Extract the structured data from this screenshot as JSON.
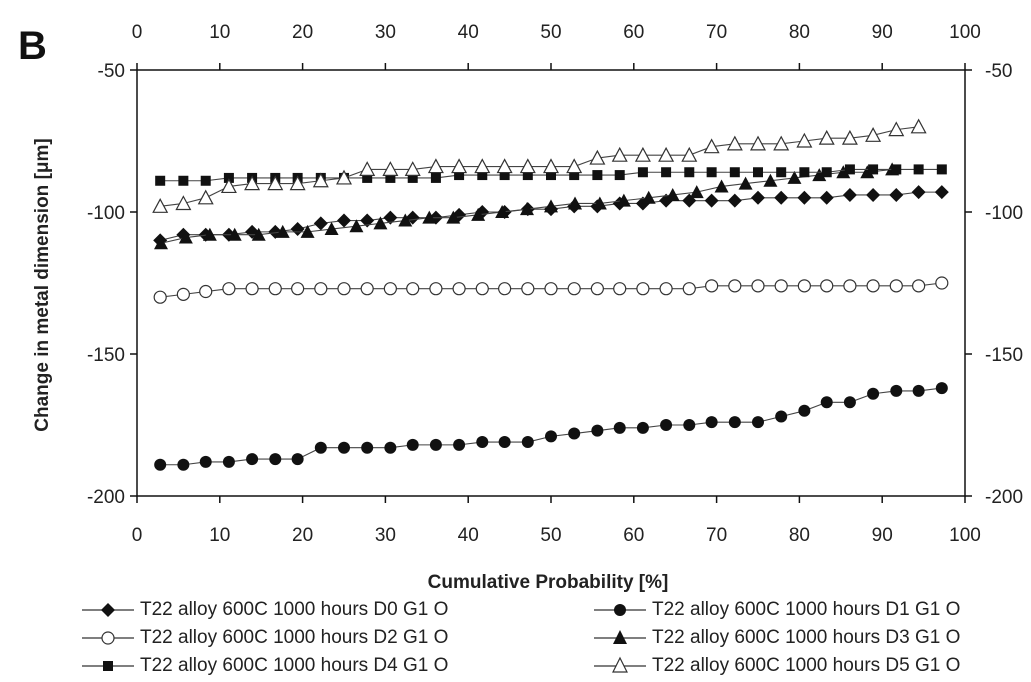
{
  "panel_label": "B",
  "chart_data": {
    "type": "scatter",
    "title": "",
    "xlabel": "Cumulative Probability [%]",
    "ylabel": "Change in metal dimension [μm]",
    "xlim": [
      0,
      100
    ],
    "ylim": [
      -200,
      -50
    ],
    "x_ticks": [
      0,
      10,
      20,
      30,
      40,
      50,
      60,
      70,
      80,
      90,
      100
    ],
    "y_ticks": [
      -50,
      -100,
      -150,
      -200
    ],
    "grid": false,
    "legend_position": "bottom",
    "series": [
      {
        "name": "T22 alloy 600C 1000 hours D0 G1 O",
        "marker": "diamond-filled",
        "x": [
          2.8,
          5.6,
          8.3,
          11.1,
          13.9,
          16.7,
          19.4,
          22.2,
          25.0,
          27.8,
          30.6,
          33.3,
          36.1,
          38.9,
          41.7,
          44.4,
          47.2,
          50.0,
          52.8,
          55.6,
          58.3,
          61.1,
          63.9,
          66.7,
          69.4,
          72.2,
          75.0,
          77.8,
          80.6,
          83.3,
          86.1,
          88.9,
          91.7,
          94.4,
          97.2
        ],
        "y": [
          -110,
          -108,
          -108,
          -108,
          -107,
          -107,
          -106,
          -104,
          -103,
          -103,
          -102,
          -102,
          -102,
          -101,
          -100,
          -100,
          -99,
          -99,
          -98,
          -98,
          -97,
          -97,
          -96,
          -96,
          -96,
          -96,
          -95,
          -95,
          -95,
          -95,
          -94,
          -94,
          -94,
          -93,
          -93
        ]
      },
      {
        "name": "T22 alloy 600C 1000 hours D1 G1 O",
        "marker": "circle-filled",
        "x": [
          2.8,
          5.6,
          8.3,
          11.1,
          13.9,
          16.7,
          19.4,
          22.2,
          25.0,
          27.8,
          30.6,
          33.3,
          36.1,
          38.9,
          41.7,
          44.4,
          47.2,
          50.0,
          52.8,
          55.6,
          58.3,
          61.1,
          63.9,
          66.7,
          69.4,
          72.2,
          75.0,
          77.8,
          80.6,
          83.3,
          86.1,
          88.9,
          91.7,
          94.4,
          97.2
        ],
        "y": [
          -189,
          -189,
          -188,
          -188,
          -187,
          -187,
          -187,
          -183,
          -183,
          -183,
          -183,
          -182,
          -182,
          -182,
          -181,
          -181,
          -181,
          -179,
          -178,
          -177,
          -176,
          -176,
          -175,
          -175,
          -174,
          -174,
          -174,
          -172,
          -170,
          -167,
          -167,
          -164,
          -163,
          -163,
          -162
        ]
      },
      {
        "name": "T22 alloy 600C 1000 hours D2 G1 O",
        "marker": "circle-open",
        "x": [
          2.8,
          5.6,
          8.3,
          11.1,
          13.9,
          16.7,
          19.4,
          22.2,
          25.0,
          27.8,
          30.6,
          33.3,
          36.1,
          38.9,
          41.7,
          44.4,
          47.2,
          50.0,
          52.8,
          55.6,
          58.3,
          61.1,
          63.9,
          66.7,
          69.4,
          72.2,
          75.0,
          77.8,
          80.6,
          83.3,
          86.1,
          88.9,
          91.7,
          94.4,
          97.2
        ],
        "y": [
          -130,
          -129,
          -128,
          -127,
          -127,
          -127,
          -127,
          -127,
          -127,
          -127,
          -127,
          -127,
          -127,
          -127,
          -127,
          -127,
          -127,
          -127,
          -127,
          -127,
          -127,
          -127,
          -127,
          -127,
          -126,
          -126,
          -126,
          -126,
          -126,
          -126,
          -126,
          -126,
          -126,
          -126,
          -125
        ]
      },
      {
        "name": "T22 alloy 600C 1000 hours D3 G1 O",
        "marker": "triangle-filled",
        "x": [
          2.9,
          5.9,
          8.8,
          11.8,
          14.7,
          17.6,
          20.6,
          23.5,
          26.5,
          29.4,
          32.4,
          35.3,
          38.2,
          41.2,
          44.1,
          47.1,
          50.0,
          52.9,
          55.9,
          58.8,
          61.8,
          64.7,
          67.6,
          70.6,
          73.5,
          76.5,
          79.4,
          82.4,
          85.3,
          88.2,
          91.2
        ],
        "y": [
          -111,
          -109,
          -108,
          -108,
          -108,
          -107,
          -107,
          -106,
          -105,
          -104,
          -103,
          -102,
          -102,
          -101,
          -100,
          -99,
          -98,
          -97,
          -97,
          -96,
          -95,
          -94,
          -93,
          -91,
          -90,
          -89,
          -88,
          -87,
          -86,
          -86,
          -85
        ]
      },
      {
        "name": "T22 alloy 600C 1000 hours D4 G1 O",
        "marker": "square-filled",
        "x": [
          2.8,
          5.6,
          8.3,
          11.1,
          13.9,
          16.7,
          19.4,
          22.2,
          25.0,
          27.8,
          30.6,
          33.3,
          36.1,
          38.9,
          41.7,
          44.4,
          47.2,
          50.0,
          52.8,
          55.6,
          58.3,
          61.1,
          63.9,
          66.7,
          69.4,
          72.2,
          75.0,
          77.8,
          80.6,
          83.3,
          86.1,
          88.9,
          91.7,
          94.4,
          97.2
        ],
        "y": [
          -89,
          -89,
          -89,
          -88,
          -88,
          -88,
          -88,
          -88,
          -88,
          -88,
          -88,
          -88,
          -88,
          -87,
          -87,
          -87,
          -87,
          -87,
          -87,
          -87,
          -87,
          -86,
          -86,
          -86,
          -86,
          -86,
          -86,
          -86,
          -86,
          -86,
          -85,
          -85,
          -85,
          -85,
          -85
        ]
      },
      {
        "name": "T22 alloy 600C 1000 hours D5 G1 O",
        "marker": "triangle-open",
        "x": [
          2.8,
          5.6,
          8.3,
          11.1,
          13.9,
          16.7,
          19.4,
          22.2,
          25.0,
          27.8,
          30.6,
          33.3,
          36.1,
          38.9,
          41.7,
          44.4,
          47.2,
          50.0,
          52.8,
          55.6,
          58.3,
          61.1,
          63.9,
          66.7,
          69.4,
          72.2,
          75.0,
          77.8,
          80.6,
          83.3,
          86.1,
          88.9,
          91.7,
          94.4
        ],
        "y": [
          -98,
          -97,
          -95,
          -91,
          -90,
          -90,
          -90,
          -89,
          -88,
          -85,
          -85,
          -85,
          -84,
          -84,
          -84,
          -84,
          -84,
          -84,
          -84,
          -81,
          -80,
          -80,
          -80,
          -80,
          -77,
          -76,
          -76,
          -76,
          -75,
          -74,
          -74,
          -73,
          -71,
          -70
        ]
      }
    ]
  }
}
